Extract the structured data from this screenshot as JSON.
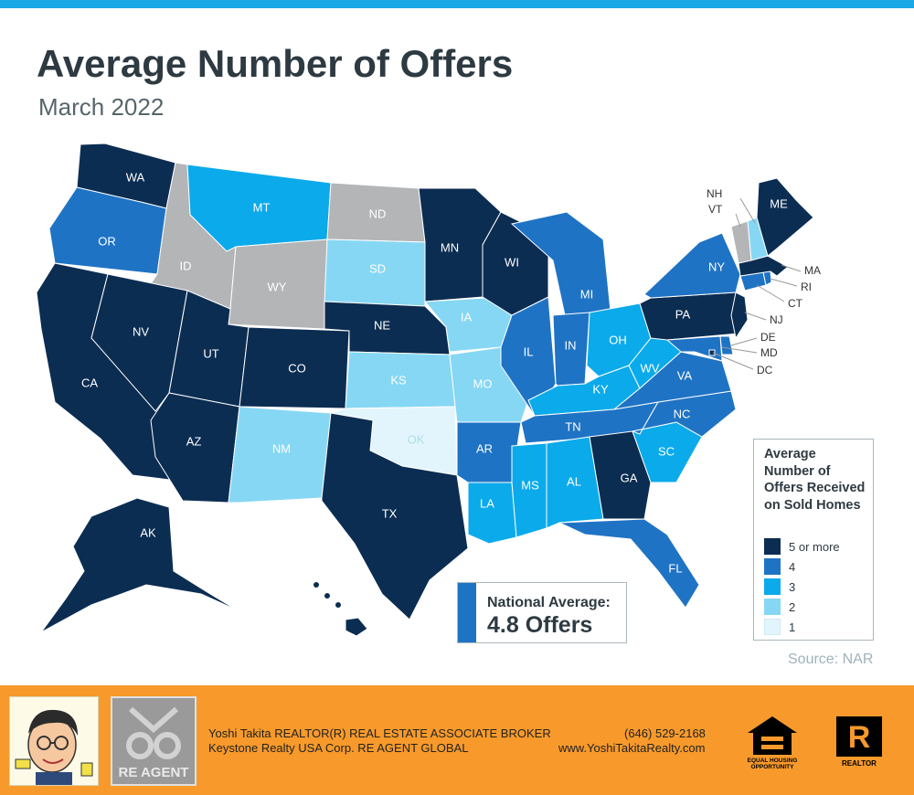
{
  "header": {
    "title": "Average Number of Offers",
    "subtitle": "March 2022"
  },
  "colors": {
    "accent_bar": "#1ba7e6",
    "5_or_more": "#0c2d52",
    "4": "#1f73c4",
    "3": "#0baaeb",
    "2": "#86d7f4",
    "1": "#e2f5fc",
    "no_data": "#b3b5b7",
    "footer": "#f79a2b"
  },
  "legend": {
    "title": "Average Number of Offers Received on Sold Homes",
    "items": [
      {
        "label": "5 or more",
        "color": "#0c2d52"
      },
      {
        "label": "4",
        "color": "#1f73c4"
      },
      {
        "label": "3",
        "color": "#0baaeb"
      },
      {
        "label": "2",
        "color": "#86d7f4"
      },
      {
        "label": "1",
        "color": "#e2f5fc"
      }
    ]
  },
  "national": {
    "label": "National Average:",
    "value": "4.8 Offers"
  },
  "source": "Source: NAR",
  "states": [
    {
      "abbr": "WA",
      "level": "5"
    },
    {
      "abbr": "OR",
      "level": "4"
    },
    {
      "abbr": "CA",
      "level": "5"
    },
    {
      "abbr": "ID",
      "level": "none"
    },
    {
      "abbr": "NV",
      "level": "5"
    },
    {
      "abbr": "MT",
      "level": "3"
    },
    {
      "abbr": "WY",
      "level": "none"
    },
    {
      "abbr": "UT",
      "level": "5"
    },
    {
      "abbr": "AZ",
      "level": "5"
    },
    {
      "abbr": "CO",
      "level": "5"
    },
    {
      "abbr": "NM",
      "level": "2"
    },
    {
      "abbr": "ND",
      "level": "none"
    },
    {
      "abbr": "SD",
      "level": "2"
    },
    {
      "abbr": "NE",
      "level": "5"
    },
    {
      "abbr": "KS",
      "level": "2"
    },
    {
      "abbr": "OK",
      "level": "1"
    },
    {
      "abbr": "TX",
      "level": "5"
    },
    {
      "abbr": "MN",
      "level": "5"
    },
    {
      "abbr": "IA",
      "level": "2"
    },
    {
      "abbr": "MO",
      "level": "2"
    },
    {
      "abbr": "AR",
      "level": "4"
    },
    {
      "abbr": "LA",
      "level": "3"
    },
    {
      "abbr": "WI",
      "level": "5"
    },
    {
      "abbr": "IL",
      "level": "4"
    },
    {
      "abbr": "MI",
      "level": "4"
    },
    {
      "abbr": "IN",
      "level": "4"
    },
    {
      "abbr": "OH",
      "level": "3"
    },
    {
      "abbr": "KY",
      "level": "3"
    },
    {
      "abbr": "TN",
      "level": "4"
    },
    {
      "abbr": "MS",
      "level": "3"
    },
    {
      "abbr": "AL",
      "level": "3"
    },
    {
      "abbr": "GA",
      "level": "5"
    },
    {
      "abbr": "FL",
      "level": "4"
    },
    {
      "abbr": "SC",
      "level": "3"
    },
    {
      "abbr": "NC",
      "level": "4"
    },
    {
      "abbr": "VA",
      "level": "4"
    },
    {
      "abbr": "WV",
      "level": "3"
    },
    {
      "abbr": "PA",
      "level": "5"
    },
    {
      "abbr": "NY",
      "level": "4"
    },
    {
      "abbr": "NJ",
      "level": "5"
    },
    {
      "abbr": "DE",
      "level": "4"
    },
    {
      "abbr": "MD",
      "level": "4"
    },
    {
      "abbr": "DC",
      "level": "5"
    },
    {
      "abbr": "CT",
      "level": "4"
    },
    {
      "abbr": "RI",
      "level": "4"
    },
    {
      "abbr": "MA",
      "level": "5"
    },
    {
      "abbr": "VT",
      "level": "none"
    },
    {
      "abbr": "NH",
      "level": "2"
    },
    {
      "abbr": "ME",
      "level": "5"
    },
    {
      "abbr": "AK",
      "level": "5"
    },
    {
      "abbr": "HI",
      "level": "5"
    }
  ],
  "footer": {
    "agent_name": "Yoshi Takita REALTOR(R) REAL ESTATE ASSOCIATE BROKER",
    "company": "Keystone Realty USA Corp.  RE AGENT GLOBAL",
    "phone": "(646) 529-2168",
    "website": "www.YoshiTakitaRealty.com",
    "re_agent_logo": "RE AGENT",
    "equal_housing": "EQUAL HOUSING OPPORTUNITY",
    "realtor_mark": "REALTOR"
  }
}
